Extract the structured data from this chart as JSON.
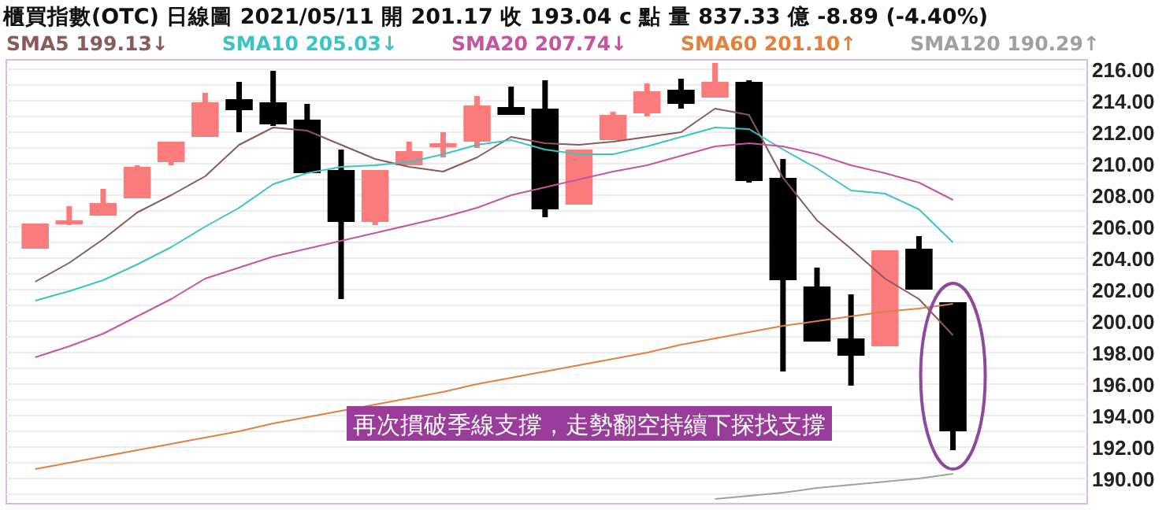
{
  "chart_data": {
    "type": "candlestick",
    "title": "櫃買指數(OTC)   日線圖  2021/05/11  開 201.17  收 193.04 c 點  量 837.33 億  -8.89 (-4.40%)",
    "categories": [
      null,
      null,
      null,
      null,
      null,
      null,
      null,
      null,
      null,
      null,
      null,
      null,
      null,
      null,
      null,
      null,
      null,
      null,
      null,
      null,
      null,
      null,
      null,
      null,
      null,
      null,
      null,
      null
    ],
    "ohlc": [
      [
        204.6,
        206.2,
        204.6,
        206.2
      ],
      [
        206.3,
        207.3,
        206.1,
        206.4
      ],
      [
        206.7,
        208.4,
        206.7,
        207.5
      ],
      [
        207.8,
        209.9,
        207.8,
        209.8
      ],
      [
        210.1,
        211.4,
        209.9,
        211.4
      ],
      [
        211.7,
        214.5,
        211.7,
        213.9
      ],
      [
        214.1,
        215.2,
        212.0,
        213.4
      ],
      [
        213.9,
        215.9,
        212.4,
        212.5
      ],
      [
        212.8,
        213.8,
        209.4,
        209.4
      ],
      [
        209.6,
        210.9,
        201.4,
        206.3
      ],
      [
        206.3,
        209.6,
        206.1,
        209.6
      ],
      [
        209.9,
        211.4,
        209.9,
        210.8
      ],
      [
        211.1,
        212.0,
        210.4,
        211.3
      ],
      [
        211.4,
        214.3,
        211.0,
        213.7
      ],
      [
        213.6,
        214.9,
        213.1,
        213.1
      ],
      [
        213.5,
        215.3,
        206.6,
        207.1
      ],
      [
        207.4,
        210.9,
        207.4,
        210.9
      ],
      [
        211.5,
        213.3,
        211.5,
        213.1
      ],
      [
        213.2,
        215.1,
        213.0,
        214.6
      ],
      [
        214.7,
        215.4,
        213.5,
        213.8
      ],
      [
        214.2,
        216.4,
        214.2,
        215.2
      ],
      [
        215.2,
        215.3,
        208.8,
        208.9
      ],
      [
        209.1,
        210.3,
        196.8,
        202.6
      ],
      [
        202.2,
        203.4,
        198.7,
        198.7
      ],
      [
        198.9,
        201.7,
        195.9,
        197.8
      ],
      [
        198.4,
        204.5,
        198.4,
        204.5
      ],
      [
        204.6,
        205.4,
        202.0,
        202.0
      ],
      [
        201.2,
        201.2,
        191.8,
        193.0
      ]
    ],
    "colors": [
      "#fa7b7b",
      "#fa7b7b",
      "#fa7b7b",
      "#fa7b7b",
      "#fa7b7b",
      "#fa7b7b",
      "#000000",
      "#000000",
      "#000000",
      "#000000",
      "#fa7b7b",
      "#fa7b7b",
      "#fa7b7b",
      "#fa7b7b",
      "#000000",
      "#000000",
      "#fa7b7b",
      "#fa7b7b",
      "#fa7b7b",
      "#000000",
      "#fa7b7b",
      "#000000",
      "#000000",
      "#000000",
      "#000000",
      "#fa7b7b",
      "#000000",
      "#000000"
    ],
    "series": [
      {
        "type": "line",
        "name": "SMA5 199.13↓",
        "color": "#8a5a5a",
        "values": [
          202.5,
          203.7,
          205.2,
          206.9,
          208.0,
          209.2,
          211.2,
          212.3,
          212.1,
          211.2,
          210.3,
          209.8,
          209.5,
          210.4,
          211.7,
          211.3,
          211.2,
          211.4,
          211.7,
          212.0,
          213.5,
          213.1,
          209.1,
          206.4,
          204.6,
          202.7,
          201.4,
          199.1
        ]
      },
      {
        "type": "line",
        "name": "SMA10 205.03↓",
        "color": "#3cc4c4",
        "values": [
          201.3,
          201.9,
          202.6,
          203.6,
          204.7,
          206.0,
          207.2,
          208.7,
          209.4,
          209.8,
          209.9,
          210.1,
          210.6,
          211.2,
          211.5,
          210.9,
          210.6,
          210.6,
          211.1,
          211.7,
          212.3,
          212.2,
          210.9,
          209.7,
          208.3,
          208.1,
          207.1,
          205.0
        ]
      },
      {
        "type": "line",
        "name": "SMA20 207.74↓",
        "color": "#c4559e",
        "values": [
          197.7,
          198.4,
          199.2,
          200.3,
          201.4,
          202.7,
          203.4,
          204.1,
          204.6,
          205.1,
          205.6,
          206.1,
          206.6,
          207.2,
          208.0,
          208.5,
          209.0,
          209.5,
          209.9,
          210.5,
          211.1,
          211.3,
          211.1,
          210.6,
          209.9,
          209.4,
          208.8,
          207.7
        ]
      },
      {
        "type": "line",
        "name": "SMA60 201.10↑",
        "color": "#e0813e",
        "values": [
          190.6,
          191.0,
          191.4,
          191.8,
          192.2,
          192.6,
          193.0,
          193.5,
          193.9,
          194.3,
          194.7,
          195.1,
          195.5,
          196.0,
          196.4,
          196.8,
          197.2,
          197.6,
          198.0,
          198.5,
          198.9,
          199.3,
          199.7,
          200.0,
          200.3,
          200.6,
          200.8,
          201.1
        ]
      },
      {
        "type": "line",
        "name": "SMA120 190.29↑",
        "color": "#a0a0a0",
        "values": [
          null,
          null,
          null,
          null,
          null,
          null,
          null,
          null,
          null,
          null,
          null,
          null,
          null,
          null,
          null,
          null,
          null,
          null,
          null,
          null,
          188.7,
          188.9,
          189.1,
          189.4,
          189.6,
          189.8,
          190.0,
          190.3
        ]
      }
    ],
    "ylim": [
      188.4,
      216.6
    ],
    "yticks": [
      {
        "value": 189,
        "label": null
      },
      {
        "value": 190,
        "label": "190.00"
      },
      {
        "value": 191,
        "label": null
      },
      {
        "value": 192,
        "label": "192.00"
      },
      {
        "value": 193,
        "label": null
      },
      {
        "value": 194,
        "label": "194.00"
      },
      {
        "value": 195,
        "label": null
      },
      {
        "value": 196,
        "label": "196.00"
      },
      {
        "value": 197,
        "label": null
      },
      {
        "value": 198,
        "label": "198.00"
      },
      {
        "value": 199,
        "label": null
      },
      {
        "value": 200,
        "label": "200.00"
      },
      {
        "value": 201,
        "label": null
      },
      {
        "value": 202,
        "label": "202.00"
      },
      {
        "value": 203,
        "label": null
      },
      {
        "value": 204,
        "label": "204.00"
      },
      {
        "value": 205,
        "label": null
      },
      {
        "value": 206,
        "label": "206.00"
      },
      {
        "value": 207,
        "label": null
      },
      {
        "value": 208,
        "label": "208.00"
      },
      {
        "value": 209,
        "label": null
      },
      {
        "value": 210,
        "label": "210.00"
      },
      {
        "value": 211,
        "label": null
      },
      {
        "value": 212,
        "label": "212.00"
      },
      {
        "value": 213,
        "label": null
      },
      {
        "value": 214,
        "label": "214.00"
      },
      {
        "value": 215,
        "label": null
      },
      {
        "value": 216,
        "label": "216.00"
      }
    ],
    "grid": "y",
    "legend": "top",
    "annotations": [
      "再次摜破季線支撐，走勢翻空持續下探找支撐"
    ]
  }
}
